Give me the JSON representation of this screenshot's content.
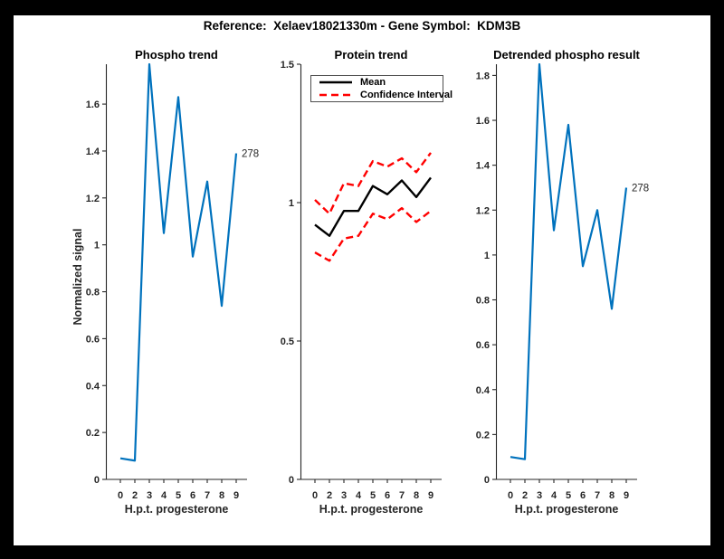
{
  "figure_title": "Reference:  Xelaev18021330m - Gene Symbol:  KDM3B",
  "colors": {
    "phospho_line": "#0072BD",
    "mean_line": "#000000",
    "confidence_interval": "#FF0000",
    "axis": "#262626",
    "figure_background": "#FFFFFF",
    "window_border": "#000000"
  },
  "legend": {
    "mean_label": "Mean",
    "ci_label": "Confidence Interval",
    "position": "top-left of Protein trend subplot"
  },
  "chart_data": [
    {
      "type": "line",
      "title": "Phospho trend",
      "xlabel": "H.p.t. progesterone",
      "ylabel": "Normalized signal",
      "x": [
        0,
        2,
        3,
        4,
        5,
        6,
        7,
        8,
        9
      ],
      "x_ticklabels": [
        "0",
        "2",
        "3",
        "4",
        "5",
        "6",
        "7",
        "8",
        "9"
      ],
      "x_spacing": "categorical-equal",
      "ylim": [
        0,
        1.77
      ],
      "yticks": [
        0,
        0.2,
        0.4,
        0.6,
        0.8,
        1,
        1.2,
        1.4,
        1.6
      ],
      "grid": false,
      "series": [
        {
          "name": "phospho",
          "color": "#0072BD",
          "style": "solid",
          "width": 2.2,
          "values": [
            0.09,
            0.08,
            1.77,
            1.05,
            1.63,
            0.95,
            1.27,
            0.74,
            1.39
          ]
        }
      ],
      "annotation": {
        "text": "278",
        "attached_to": "last-point"
      }
    },
    {
      "type": "line",
      "title": "Protein trend",
      "xlabel": "H.p.t. progesterone",
      "ylabel": "",
      "x": [
        0,
        2,
        3,
        4,
        5,
        6,
        7,
        8,
        9
      ],
      "x_ticklabels": [
        "0",
        "2",
        "3",
        "4",
        "5",
        "6",
        "7",
        "8",
        "9"
      ],
      "x_spacing": "categorical-equal",
      "ylim": [
        0,
        1.5
      ],
      "yticks": [
        0,
        0.5,
        1,
        1.5
      ],
      "grid": false,
      "legend_entries": [
        "Mean",
        "Confidence Interval"
      ],
      "series": [
        {
          "name": "Confidence Interval upper",
          "color": "#FF0000",
          "style": "dashed",
          "width": 2.4,
          "values": [
            1.01,
            0.96,
            1.07,
            1.06,
            1.15,
            1.13,
            1.16,
            1.11,
            1.18
          ]
        },
        {
          "name": "Confidence Interval lower",
          "color": "#FF0000",
          "style": "dashed",
          "width": 2.4,
          "values": [
            0.82,
            0.79,
            0.87,
            0.88,
            0.96,
            0.94,
            0.98,
            0.93,
            0.97
          ]
        },
        {
          "name": "Mean",
          "color": "#000000",
          "style": "solid",
          "width": 2.4,
          "values": [
            0.92,
            0.88,
            0.97,
            0.97,
            1.06,
            1.03,
            1.08,
            1.02,
            1.09
          ]
        }
      ]
    },
    {
      "type": "line",
      "title": "Detrended phospho result",
      "xlabel": "H.p.t. progesterone",
      "ylabel": "",
      "x": [
        0,
        2,
        3,
        4,
        5,
        6,
        7,
        8,
        9
      ],
      "x_ticklabels": [
        "0",
        "2",
        "3",
        "4",
        "5",
        "6",
        "7",
        "8",
        "9"
      ],
      "x_spacing": "categorical-equal",
      "ylim": [
        0,
        1.85
      ],
      "yticks": [
        0,
        0.2,
        0.4,
        0.6,
        0.8,
        1,
        1.2,
        1.4,
        1.6,
        1.8
      ],
      "grid": false,
      "series": [
        {
          "name": "detrended phospho",
          "color": "#0072BD",
          "style": "solid",
          "width": 2.2,
          "values": [
            0.1,
            0.09,
            1.85,
            1.11,
            1.58,
            0.95,
            1.2,
            0.76,
            1.3
          ]
        }
      ],
      "annotation": {
        "text": "278",
        "attached_to": "last-point"
      }
    }
  ]
}
